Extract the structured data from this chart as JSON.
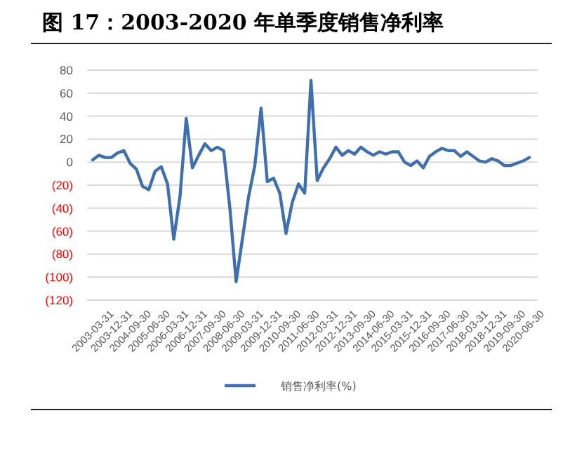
{
  "chart_data": {
    "type": "line",
    "title": "图 17：2003-2020 年单季度销售净利率",
    "categories": [
      "2003-03-31",
      null,
      null,
      "2003-12-31",
      null,
      null,
      "2004-09-30",
      null,
      null,
      "2005-06-30",
      null,
      null,
      "2006-03-31",
      null,
      null,
      "2006-12-31",
      null,
      null,
      "2007-09-30",
      null,
      null,
      "2008-06-30",
      null,
      null,
      "2009-03-31",
      null,
      null,
      "2009-12-31",
      null,
      null,
      "2010-09-30",
      null,
      null,
      "2011-06-30",
      null,
      null,
      "2012-03-31",
      null,
      null,
      "2012-12-31",
      null,
      null,
      "2013-09-30",
      null,
      null,
      "2014-06-30",
      null,
      null,
      "2015-03-31",
      null,
      null,
      "2015-12-31",
      null,
      null,
      "2016-09-30",
      null,
      null,
      "2017-06-30",
      null,
      null,
      "2018-03-31",
      null,
      null,
      "2018-12-31",
      null,
      null,
      "2019-09-30",
      null,
      null,
      "2020-06-30",
      null
    ],
    "series": [
      {
        "name": "销售净利率(%)",
        "color": "#3f6fad",
        "values": [
          2,
          6,
          4,
          4,
          8,
          10,
          -1,
          -6,
          -21,
          -24,
          -8,
          -4,
          -19,
          -67,
          -30,
          38,
          -5,
          6,
          16,
          10,
          13,
          10,
          -40,
          -104,
          -67,
          -30,
          -3,
          47,
          -17,
          -14,
          -27,
          -62,
          -35,
          -19,
          -27,
          71,
          -16,
          -5,
          3,
          13,
          6,
          10,
          7,
          13,
          9,
          6,
          9,
          7,
          9,
          9,
          0,
          -3,
          1,
          -5,
          5,
          9,
          12,
          10,
          10,
          5,
          9,
          5,
          1,
          0,
          3,
          1,
          -3,
          -3,
          -1,
          1,
          4
        ]
      }
    ],
    "ylim": [
      -120,
      80
    ],
    "yticks": [
      {
        "value": -120,
        "label": "(120)"
      },
      {
        "value": -100,
        "label": "(100)"
      },
      {
        "value": -80,
        "label": "(80)"
      },
      {
        "value": -60,
        "label": "(60)"
      },
      {
        "value": -40,
        "label": "(40)"
      },
      {
        "value": -20,
        "label": "(20)"
      },
      0,
      20,
      40,
      60,
      80
    ],
    "grid": "y",
    "legend": "bottom",
    "line_style": "solid"
  }
}
